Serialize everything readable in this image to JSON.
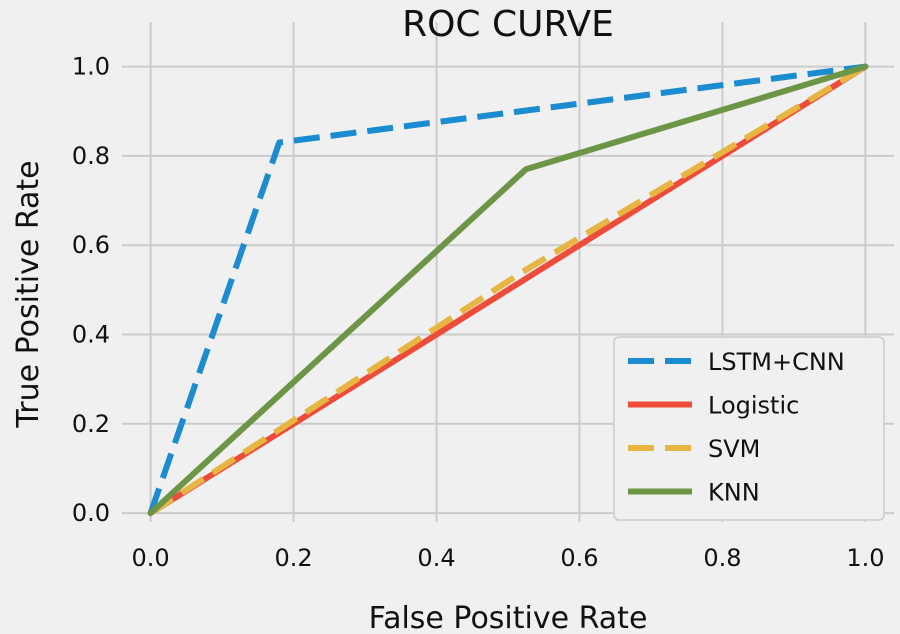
{
  "chart_data": {
    "type": "line",
    "title": "ROC CURVE",
    "xlabel": "False Positive Rate",
    "ylabel": "True Positive Rate",
    "xlim": [
      -0.04,
      1.04
    ],
    "ylim": [
      -0.02,
      1.1
    ],
    "xticks": [
      0.0,
      0.2,
      0.4,
      0.6,
      0.8,
      1.0
    ],
    "xtick_labels": [
      "0.0",
      "0.2",
      "0.4",
      "0.6",
      "0.8",
      "1.0"
    ],
    "yticks": [
      0.0,
      0.2,
      0.4,
      0.6,
      0.8,
      1.0
    ],
    "ytick_labels": [
      "0.0",
      "0.2",
      "0.4",
      "0.6",
      "0.8",
      "1.0"
    ],
    "grid": true,
    "legend_position": "lower-right",
    "series": [
      {
        "name": "LSTM+CNN",
        "color": "#1b8cd1",
        "style": "dashed",
        "x": [
          0.0,
          0.18,
          1.0
        ],
        "y": [
          0.0,
          0.83,
          1.0
        ]
      },
      {
        "name": "Logistic",
        "color": "#ee4c3b",
        "style": "solid",
        "x": [
          0.0,
          1.0
        ],
        "y": [
          0.0,
          1.0
        ]
      },
      {
        "name": "SVM",
        "color": "#e7b541",
        "style": "dashed",
        "x": [
          0.0,
          0.52,
          1.0
        ],
        "y": [
          0.0,
          0.54,
          1.0
        ]
      },
      {
        "name": "KNN",
        "color": "#6c9646",
        "style": "solid",
        "x": [
          0.0,
          0.525,
          1.0
        ],
        "y": [
          0.0,
          0.77,
          1.0
        ]
      }
    ]
  }
}
